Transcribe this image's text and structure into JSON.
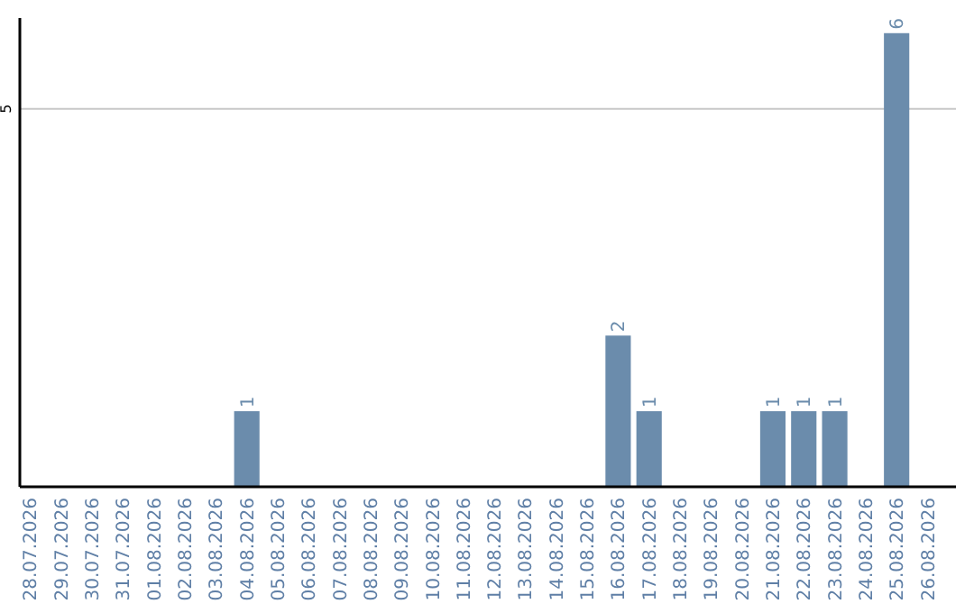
{
  "chart_data": {
    "type": "bar",
    "categories": [
      "28.07.2026",
      "29.07.2026",
      "30.07.2026",
      "31.07.2026",
      "01.08.2026",
      "02.08.2026",
      "03.08.2026",
      "04.08.2026",
      "05.08.2026",
      "06.08.2026",
      "07.08.2026",
      "08.08.2026",
      "09.08.2026",
      "10.08.2026",
      "11.08.2026",
      "12.08.2026",
      "13.08.2026",
      "14.08.2026",
      "15.08.2026",
      "16.08.2026",
      "17.08.2026",
      "18.08.2026",
      "19.08.2026",
      "20.08.2026",
      "21.08.2026",
      "22.08.2026",
      "23.08.2026",
      "24.08.2026",
      "25.08.2026",
      "26.08.2026"
    ],
    "values": [
      0,
      0,
      0,
      0,
      0,
      0,
      0,
      1,
      0,
      0,
      0,
      0,
      0,
      0,
      0,
      0,
      0,
      0,
      0,
      2,
      1,
      0,
      0,
      0,
      1,
      1,
      1,
      0,
      6,
      0
    ],
    "value_labels": [
      null,
      null,
      null,
      null,
      null,
      null,
      null,
      "1",
      null,
      null,
      null,
      null,
      null,
      null,
      null,
      null,
      null,
      null,
      null,
      "2",
      "1",
      null,
      null,
      null,
      "1",
      "1",
      "1",
      null,
      "6",
      null
    ],
    "color": "#6b8cac",
    "ylim": [
      0,
      6.2
    ],
    "yticks": [
      5
    ],
    "grid": "y"
  }
}
